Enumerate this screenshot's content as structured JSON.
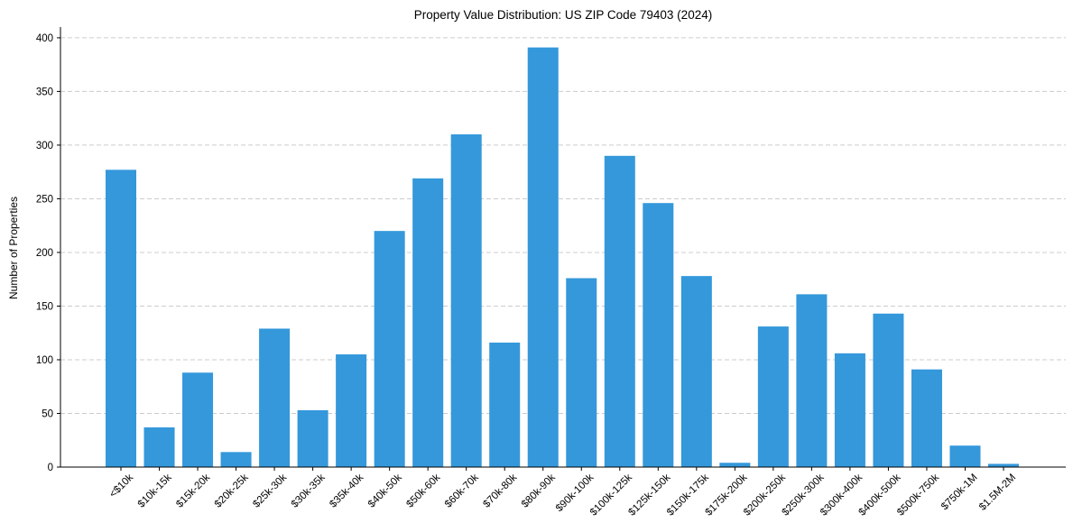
{
  "chart_data": {
    "type": "bar",
    "title": "Property Value Distribution: US ZIP Code 79403 (2024)",
    "xlabel": "",
    "ylabel": "Number of Properties",
    "ylim": [
      0,
      410
    ],
    "yticks": [
      0,
      50,
      100,
      150,
      200,
      250,
      300,
      350,
      400
    ],
    "grid": "y-dashed",
    "bar_color": "#3498db",
    "categories": [
      "<$10k",
      "$10k-15k",
      "$15k-20k",
      "$20k-25k",
      "$25k-30k",
      "$30k-35k",
      "$35k-40k",
      "$40k-50k",
      "$50k-60k",
      "$60k-70k",
      "$70k-80k",
      "$80k-90k",
      "$90k-100k",
      "$100k-125k",
      "$125k-150k",
      "$150k-175k",
      "$175k-200k",
      "$200k-250k",
      "$250k-300k",
      "$300k-400k",
      "$400k-500k",
      "$500k-750k",
      "$750k-1M",
      "$1.5M-2M"
    ],
    "values": [
      277,
      37,
      88,
      14,
      129,
      53,
      105,
      220,
      269,
      310,
      116,
      391,
      176,
      290,
      246,
      178,
      4,
      131,
      161,
      106,
      143,
      91,
      20,
      3
    ]
  }
}
